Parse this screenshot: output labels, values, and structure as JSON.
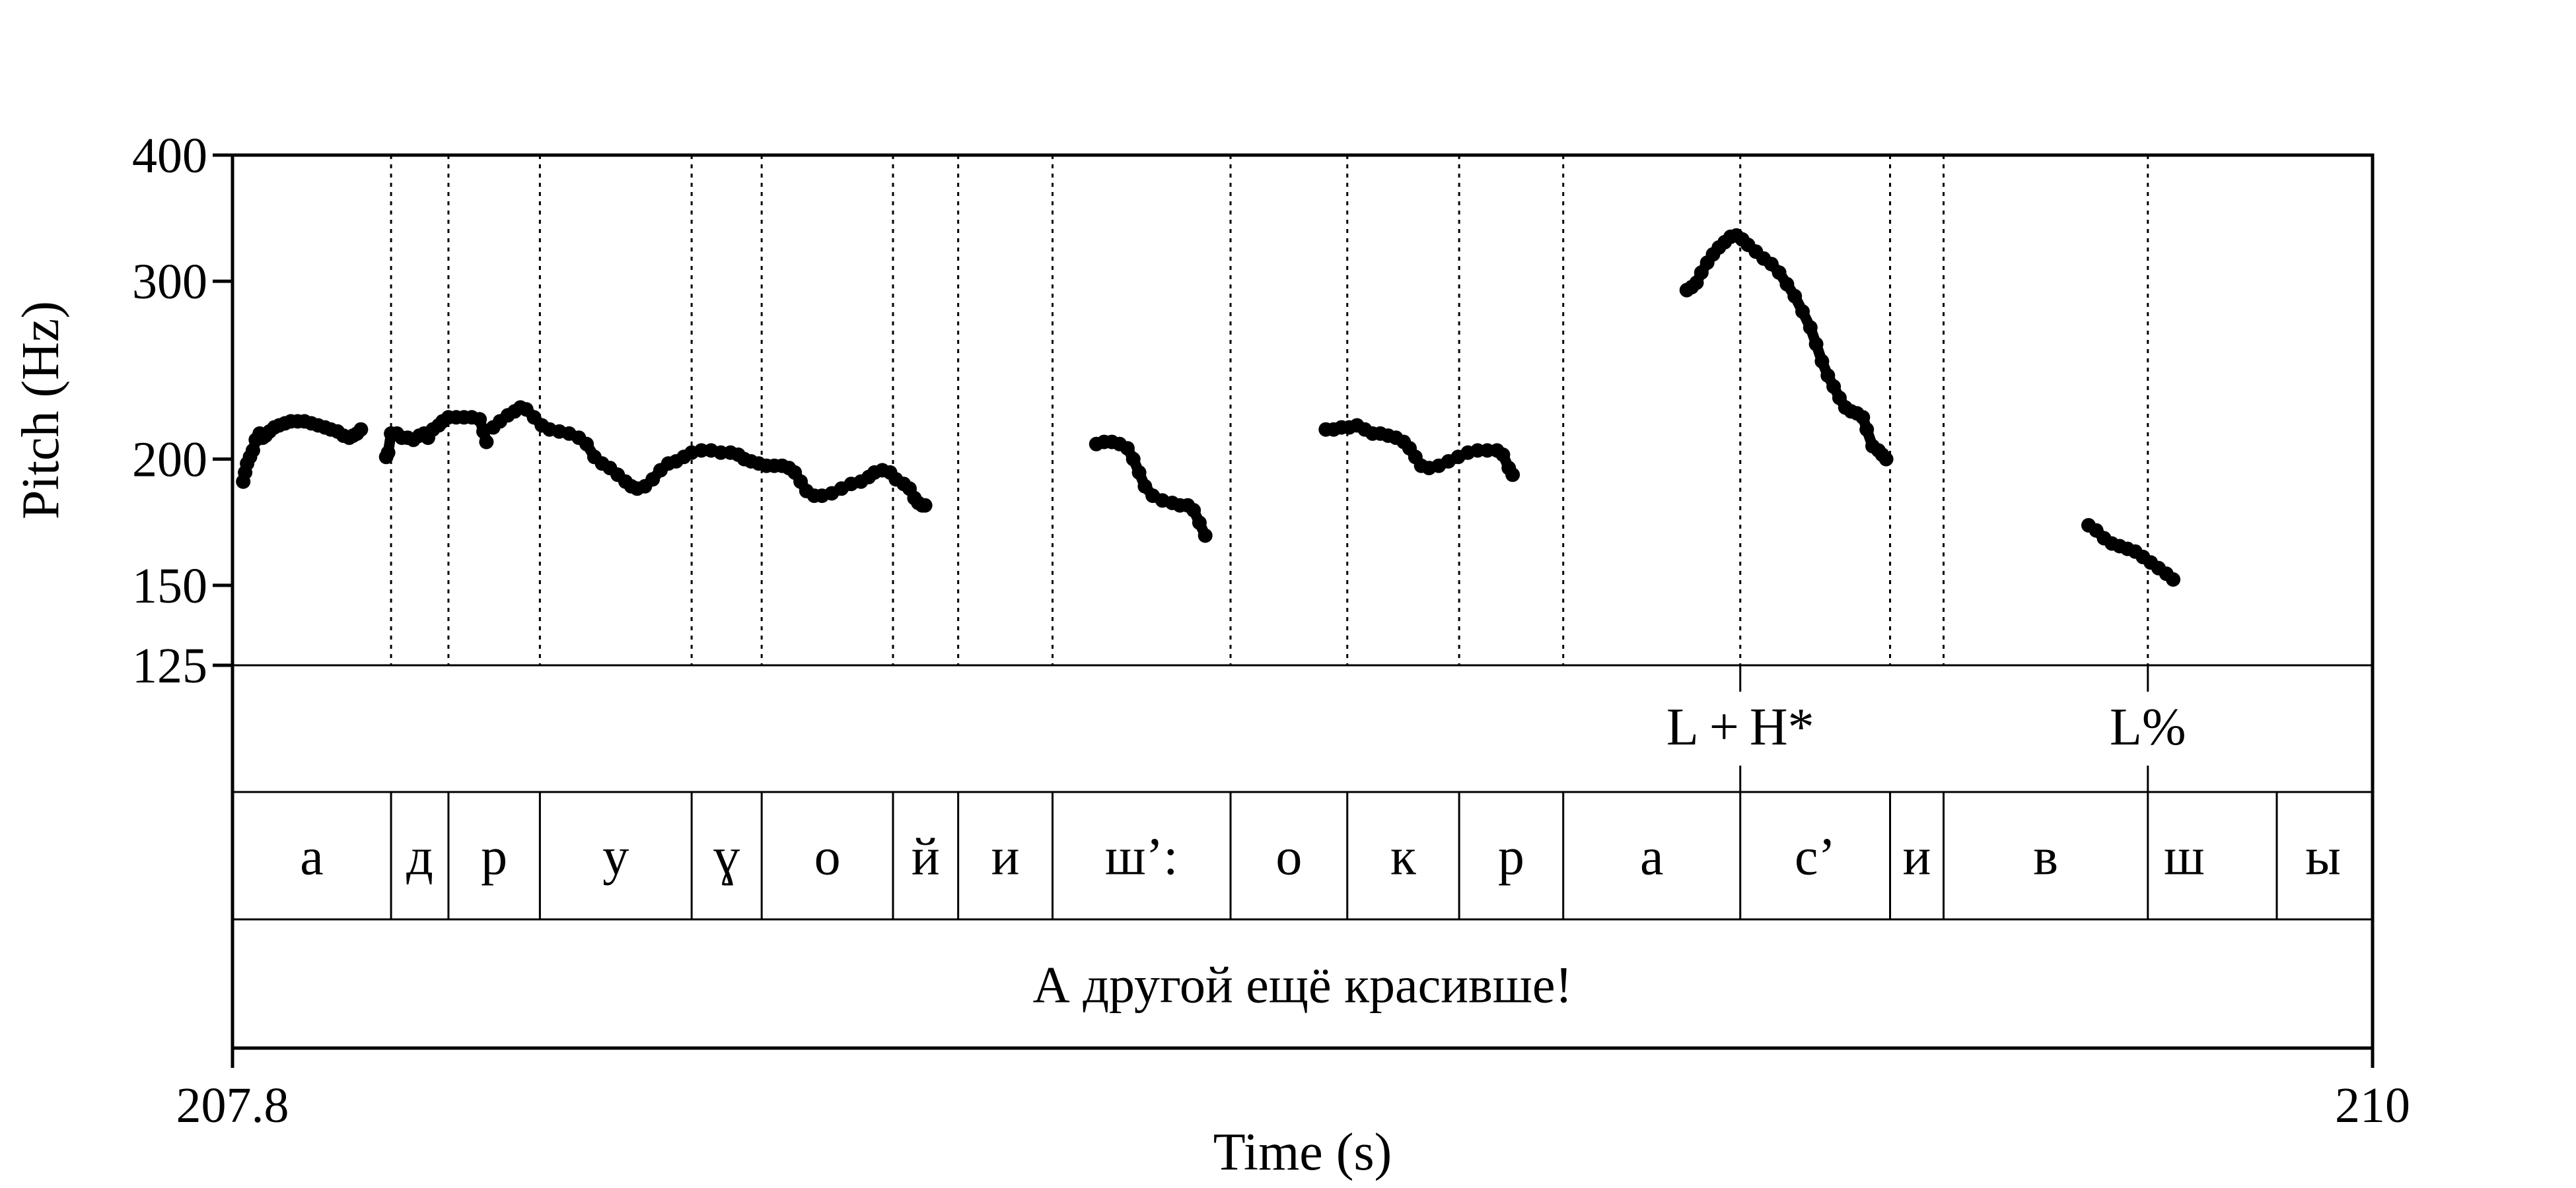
{
  "chart_data": {
    "type": "line",
    "xlabel": "Time (s)",
    "ylabel": "Pitch (Hz)",
    "xlim": [
      207.8,
      210
    ],
    "ylim": [
      125,
      400
    ],
    "y_scale": "log",
    "x_ticks": [
      "207.8",
      "210"
    ],
    "y_ticks": [
      {
        "value": 400,
        "label": "400"
      },
      {
        "value": 300,
        "label": "300"
      },
      {
        "value": 200,
        "label": "200"
      },
      {
        "value": 150,
        "label": "150"
      },
      {
        "value": 125,
        "label": "125"
      }
    ],
    "grid": false,
    "series": [
      {
        "points": [
          [
            207.811,
            190
          ],
          [
            207.813,
            194
          ],
          [
            207.815,
            198
          ],
          [
            207.818,
            201
          ],
          [
            207.821,
            204
          ],
          [
            207.824,
            209
          ],
          [
            207.828,
            212
          ],
          [
            207.831,
            210
          ],
          [
            207.834,
            211
          ],
          [
            207.838,
            213
          ],
          [
            207.843,
            215
          ],
          [
            207.848,
            216
          ],
          [
            207.854,
            217
          ],
          [
            207.86,
            218
          ],
          [
            207.867,
            218
          ],
          [
            207.874,
            218
          ],
          [
            207.881,
            217
          ],
          [
            207.888,
            216
          ],
          [
            207.895,
            215
          ],
          [
            207.901,
            214
          ],
          [
            207.908,
            213
          ],
          [
            207.914,
            211
          ],
          [
            207.92,
            210
          ],
          [
            207.924,
            211
          ],
          [
            207.928,
            212
          ],
          [
            207.932,
            214
          ]
        ]
      },
      {
        "points": [
          [
            207.958,
            201
          ],
          [
            207.96,
            203
          ],
          [
            207.963,
            212
          ],
          [
            207.969,
            212
          ],
          [
            207.974,
            210
          ],
          [
            207.98,
            210
          ],
          [
            207.986,
            209
          ],
          [
            207.992,
            211
          ],
          [
            207.997,
            212
          ],
          [
            208.001,
            210
          ],
          [
            208.006,
            214
          ],
          [
            208.012,
            216
          ],
          [
            208.016,
            218
          ],
          [
            208.022,
            220
          ],
          [
            208.03,
            220
          ],
          [
            208.038,
            220
          ],
          [
            208.046,
            220
          ],
          [
            208.054,
            219
          ],
          [
            208.058,
            213
          ],
          [
            208.061,
            208
          ]
        ]
      },
      {
        "points": [
          [
            208.068,
            215
          ],
          [
            208.075,
            218
          ],
          [
            208.083,
            221
          ],
          [
            208.09,
            223
          ],
          [
            208.096,
            225
          ],
          [
            208.102,
            224
          ],
          [
            208.11,
            220
          ],
          [
            208.118,
            216
          ],
          [
            208.126,
            214
          ],
          [
            208.136,
            213
          ],
          [
            208.146,
            212
          ],
          [
            208.156,
            210
          ],
          [
            208.164,
            207
          ],
          [
            208.172,
            201
          ],
          [
            208.18,
            198
          ],
          [
            208.188,
            196
          ],
          [
            208.196,
            193
          ],
          [
            208.204,
            190
          ],
          [
            208.21,
            188
          ],
          [
            208.216,
            187
          ],
          [
            208.224,
            188
          ],
          [
            208.232,
            191
          ],
          [
            208.24,
            195
          ],
          [
            208.248,
            198
          ],
          [
            208.256,
            199
          ],
          [
            208.264,
            201
          ],
          [
            208.272,
            203
          ],
          [
            208.282,
            204
          ],
          [
            208.292,
            204
          ],
          [
            208.302,
            203
          ],
          [
            208.312,
            203
          ],
          [
            208.32,
            202
          ],
          [
            208.326,
            200
          ],
          [
            208.333,
            199
          ],
          [
            208.341,
            198
          ],
          [
            208.349,
            197
          ],
          [
            208.357,
            197
          ],
          [
            208.365,
            197
          ],
          [
            208.372,
            196
          ],
          [
            208.378,
            194
          ],
          [
            208.384,
            190
          ],
          [
            208.39,
            186
          ],
          [
            208.398,
            184
          ],
          [
            208.406,
            184
          ],
          [
            208.416,
            185
          ],
          [
            208.426,
            187
          ],
          [
            208.436,
            189
          ],
          [
            208.446,
            190
          ],
          [
            208.454,
            192
          ],
          [
            208.46,
            194
          ],
          [
            208.468,
            195
          ],
          [
            208.476,
            194
          ],
          [
            208.482,
            191
          ],
          [
            208.49,
            189
          ],
          [
            208.496,
            187
          ],
          [
            208.501,
            183
          ],
          [
            208.505,
            181
          ],
          [
            208.509,
            180
          ],
          [
            208.512,
            180
          ]
        ]
      },
      {
        "points": [
          [
            208.688,
            207
          ],
          [
            208.696,
            208
          ],
          [
            208.704,
            208
          ],
          [
            208.712,
            207
          ],
          [
            208.72,
            205
          ],
          [
            208.726,
            200
          ],
          [
            208.732,
            194
          ],
          [
            208.738,
            188
          ],
          [
            208.746,
            184
          ],
          [
            208.756,
            182
          ],
          [
            208.766,
            181
          ],
          [
            208.774,
            180
          ],
          [
            208.782,
            180
          ],
          [
            208.788,
            178
          ],
          [
            208.794,
            173
          ],
          [
            208.8,
            168
          ]
        ]
      },
      {
        "points": [
          [
            208.924,
            214
          ],
          [
            208.932,
            214
          ],
          [
            208.94,
            215
          ],
          [
            208.948,
            215
          ],
          [
            208.956,
            216
          ],
          [
            208.964,
            214
          ],
          [
            208.972,
            212
          ],
          [
            208.98,
            212
          ],
          [
            208.988,
            211
          ],
          [
            208.996,
            210
          ],
          [
            209.004,
            208
          ],
          [
            209.01,
            205
          ],
          [
            209.016,
            201
          ],
          [
            209.022,
            197
          ],
          [
            209.03,
            196
          ],
          [
            209.04,
            197
          ],
          [
            209.05,
            199
          ],
          [
            209.06,
            201
          ],
          [
            209.07,
            203
          ],
          [
            209.08,
            204
          ],
          [
            209.09,
            204
          ],
          [
            209.1,
            204
          ],
          [
            209.106,
            202
          ],
          [
            209.112,
            196
          ],
          [
            209.116,
            193
          ]
        ]
      },
      {
        "points": [
          [
            209.295,
            294
          ],
          [
            209.3,
            296
          ],
          [
            209.305,
            299
          ],
          [
            209.31,
            306
          ],
          [
            209.316,
            313
          ],
          [
            209.322,
            319
          ],
          [
            209.328,
            324
          ],
          [
            209.334,
            328
          ],
          [
            209.34,
            332
          ],
          [
            209.346,
            333
          ],
          [
            209.352,
            330
          ],
          [
            209.358,
            326
          ],
          [
            209.366,
            321
          ],
          [
            209.374,
            316
          ],
          [
            209.382,
            312
          ],
          [
            209.39,
            306
          ],
          [
            209.398,
            298
          ],
          [
            209.406,
            290
          ],
          [
            209.414,
            280
          ],
          [
            209.422,
            270
          ],
          [
            209.428,
            260
          ],
          [
            209.434,
            250
          ],
          [
            209.44,
            242
          ],
          [
            209.446,
            236
          ],
          [
            209.452,
            230
          ],
          [
            209.458,
            225
          ],
          [
            209.464,
            223
          ],
          [
            209.47,
            222
          ],
          [
            209.476,
            220
          ],
          [
            209.48,
            214
          ],
          [
            209.486,
            206
          ],
          [
            209.492,
            204
          ],
          [
            209.496,
            202
          ],
          [
            209.5,
            200
          ]
        ]
      },
      {
        "points": [
          [
            209.708,
            172
          ],
          [
            209.716,
            170
          ],
          [
            209.724,
            167
          ],
          [
            209.732,
            165
          ],
          [
            209.74,
            164
          ],
          [
            209.748,
            163
          ],
          [
            209.756,
            162
          ],
          [
            209.764,
            160
          ],
          [
            209.772,
            158
          ],
          [
            209.78,
            156
          ],
          [
            209.788,
            154
          ],
          [
            209.795,
            152
          ]
        ]
      }
    ],
    "boundaries": [
      207.963,
      208.022,
      208.116,
      208.272,
      208.344,
      208.479,
      208.546,
      208.643,
      208.826,
      208.946,
      209.061,
      209.168,
      209.35,
      209.504,
      209.559,
      209.769
    ],
    "tiers": [
      {
        "name": "tones",
        "points": [
          {
            "time": 209.35,
            "label": "L + H*"
          },
          {
            "time": 209.769,
            "label": "L%"
          }
        ]
      },
      {
        "name": "phones",
        "intervals": [
          {
            "start": 207.8,
            "end": 207.963,
            "label": "а"
          },
          {
            "start": 207.963,
            "end": 208.022,
            "label": "д"
          },
          {
            "start": 208.022,
            "end": 208.116,
            "label": "р"
          },
          {
            "start": 208.116,
            "end": 208.272,
            "label": "у"
          },
          {
            "start": 208.272,
            "end": 208.344,
            "label": "ɣ"
          },
          {
            "start": 208.344,
            "end": 208.479,
            "label": "о"
          },
          {
            "start": 208.479,
            "end": 208.546,
            "label": "й"
          },
          {
            "start": 208.546,
            "end": 208.643,
            "label": "и"
          },
          {
            "start": 208.643,
            "end": 208.826,
            "label": "ш’:"
          },
          {
            "start": 208.826,
            "end": 208.946,
            "label": "о"
          },
          {
            "start": 208.946,
            "end": 209.061,
            "label": "к"
          },
          {
            "start": 209.061,
            "end": 209.168,
            "label": "р"
          },
          {
            "start": 209.168,
            "end": 209.35,
            "label": "а"
          },
          {
            "start": 209.35,
            "end": 209.504,
            "label": "с’"
          },
          {
            "start": 209.504,
            "end": 209.559,
            "label": "и"
          },
          {
            "start": 209.559,
            "end": 209.769,
            "label": "в"
          },
          {
            "start": 209.769,
            "end": 210.0,
            "label": "ш"
          }
        ],
        "extra_label": {
          "after": 209.769,
          "label": "ы"
        }
      },
      {
        "name": "sentence",
        "intervals": [
          {
            "start": 207.8,
            "end": 210.0,
            "label": "А другой ещё красивше!"
          }
        ]
      }
    ]
  }
}
